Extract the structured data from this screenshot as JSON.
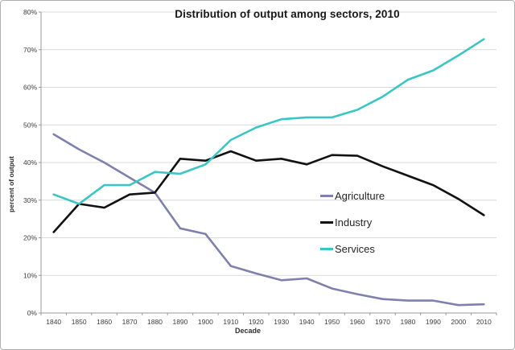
{
  "colors": {
    "agriculture": "#7f81ad",
    "industry": "#121212",
    "services": "#3bc6c4",
    "grid": "#d9d9d9",
    "axis": "#9a9a9a",
    "tick_text": "#3d3d3d",
    "title_text": "#171717"
  },
  "chart_data": {
    "type": "line",
    "title": "Distribution of output among sectors, 2010",
    "xlabel": "Decade",
    "ylabel": "percent of output",
    "ylim": [
      0,
      80
    ],
    "ytick_step": 10,
    "ytick_labels": [
      "0%",
      "10%",
      "20%",
      "30%",
      "40%",
      "50%",
      "60%",
      "70%",
      "80%"
    ],
    "grid": true,
    "legend_position": "inside-center-right",
    "categories": [
      "1840",
      "1850",
      "1860",
      "1870",
      "1880",
      "1890",
      "1900",
      "1910",
      "1920",
      "1930",
      "1940",
      "1950",
      "1960",
      "1970",
      "1980",
      "1990",
      "2000",
      "2010"
    ],
    "series": [
      {
        "name": "Agriculture",
        "color": "#7f81ad",
        "values": [
          47.5,
          43.5,
          40.0,
          36.0,
          32.0,
          22.5,
          21.0,
          12.5,
          10.5,
          8.7,
          9.2,
          6.5,
          5.0,
          3.7,
          3.3,
          3.3,
          2.1,
          2.3
        ]
      },
      {
        "name": "Industry",
        "color": "#121212",
        "values": [
          21.5,
          29.0,
          28.0,
          31.5,
          32.0,
          41.0,
          40.5,
          43.0,
          40.5,
          41.0,
          39.5,
          42.0,
          41.8,
          39.0,
          36.5,
          34.0,
          30.3,
          26.0
        ]
      },
      {
        "name": "Services",
        "color": "#3bc6c4",
        "values": [
          31.5,
          29.0,
          34.0,
          34.0,
          37.5,
          37.0,
          39.5,
          46.0,
          49.3,
          51.5,
          52.0,
          52.0,
          54.0,
          57.5,
          62.0,
          64.5,
          68.5,
          72.8
        ]
      }
    ]
  }
}
